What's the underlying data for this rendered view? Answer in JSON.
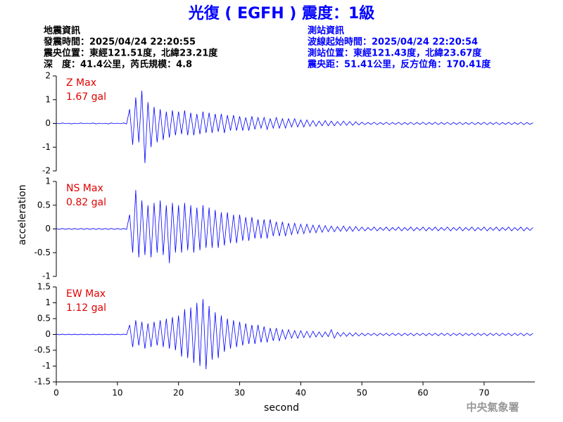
{
  "header": {
    "title": "光復 ( EGFH ) 震度：1級",
    "left": [
      "地震資訊",
      "發震時間：2025/04/24 22:20:55",
      "震央位置：東經121.51度，北緯23.21度",
      "深　度：41.4公里，芮氏規模：4.8"
    ],
    "right": [
      "測站資訊",
      "波線起始時間：2025/04/24 22:20:54",
      "測站位置：東經121.43度，北緯23.67度",
      "震央距：51.41公里，反方位角：170.41度"
    ],
    "watermark": "中央氣象署"
  },
  "chart_data": [
    {
      "type": "line",
      "annotations": [
        "Z Max",
        "1.67 gal"
      ],
      "color": "#0000ff",
      "x": [
        0,
        0.5,
        1,
        1.5,
        2,
        2.5,
        3,
        3.5,
        4,
        4.5,
        5,
        5.5,
        6,
        6.5,
        7,
        7.5,
        8,
        8.5,
        9,
        9.5,
        10,
        10.5,
        11,
        11.5,
        12,
        12.5,
        13,
        13.5,
        14,
        14.5,
        15,
        15.5,
        16,
        16.5,
        17,
        17.5,
        18,
        18.5,
        19,
        19.5,
        20,
        20.5,
        21,
        21.5,
        22,
        22.5,
        23,
        23.5,
        24,
        24.5,
        25,
        25.5,
        26,
        26.5,
        27,
        27.5,
        28,
        28.5,
        29,
        29.5,
        30,
        30.5,
        31,
        31.5,
        32,
        32.5,
        33,
        33.5,
        34,
        34.5,
        35,
        35.5,
        36,
        36.5,
        37,
        37.5,
        38,
        38.5,
        39,
        39.5,
        40,
        40.5,
        41,
        41.5,
        42,
        42.5,
        43,
        43.5,
        44,
        44.5,
        45,
        45.5,
        46,
        46.5,
        47,
        47.5,
        48,
        48.5,
        49,
        49.5,
        50,
        50.5,
        51,
        51.5,
        52,
        52.5,
        53,
        53.5,
        54,
        54.5,
        55,
        55.5,
        56,
        56.5,
        57,
        57.5,
        58,
        58.5,
        59,
        59.5,
        60,
        60.5,
        61,
        61.5,
        62,
        62.5,
        63,
        63.5,
        64,
        64.5,
        65,
        65.5,
        66,
        66.5,
        67,
        67.5,
        68,
        68.5,
        69,
        69.5,
        70,
        70.5,
        71,
        71.5,
        72,
        72.5,
        73,
        73.5,
        74,
        74.5,
        75,
        75.5,
        76,
        76.5,
        77,
        77.5,
        78
      ],
      "values": [
        0.01,
        -0.01,
        0.02,
        -0.01,
        0.01,
        -0.02,
        0.01,
        -0.01,
        0.02,
        -0.01,
        0.01,
        -0.01,
        0.02,
        -0.02,
        0.01,
        -0.01,
        0.01,
        -0.02,
        0.02,
        -0.01,
        0.01,
        -0.01,
        0.02,
        -0.02,
        0.6,
        -0.9,
        1.1,
        -0.8,
        1.38,
        -1.67,
        0.9,
        -1.0,
        0.7,
        -0.8,
        0.6,
        -0.7,
        0.5,
        -0.6,
        0.55,
        -0.5,
        0.5,
        -0.45,
        0.55,
        -0.5,
        0.45,
        -0.5,
        0.4,
        -0.45,
        0.5,
        -0.4,
        0.45,
        -0.4,
        0.4,
        -0.35,
        0.4,
        -0.4,
        0.35,
        -0.3,
        0.35,
        -0.3,
        0.3,
        -0.3,
        0.25,
        -0.3,
        0.3,
        -0.25,
        0.25,
        -0.2,
        0.25,
        -0.25,
        0.2,
        -0.2,
        0.25,
        -0.2,
        0.2,
        -0.2,
        0.2,
        -0.15,
        0.2,
        -0.15,
        0.15,
        -0.15,
        0.15,
        -0.12,
        0.12,
        -0.12,
        0.1,
        -0.1,
        0.12,
        -0.1,
        0.1,
        -0.1,
        0.08,
        -0.08,
        0.1,
        -0.08,
        0.08,
        -0.08,
        0.07,
        -0.06,
        0.05,
        -0.05,
        0.04,
        -0.04,
        0.05,
        -0.05,
        0.04,
        -0.04,
        0.05,
        -0.05,
        0.04,
        -0.04,
        0.05,
        -0.05,
        0.04,
        -0.04,
        0.05,
        -0.05,
        0.04,
        -0.04,
        0.05,
        -0.05,
        0.04,
        -0.04,
        0.05,
        -0.05,
        0.04,
        -0.04,
        0.05,
        -0.05,
        0.04,
        -0.04,
        0.05,
        -0.05,
        0.04,
        -0.04,
        0.05,
        -0.05,
        0.04,
        -0.04,
        0.05,
        -0.05,
        0.04,
        -0.04,
        0.05,
        -0.05,
        0.04,
        -0.04,
        0.05,
        -0.05,
        0.04,
        -0.04,
        0.05,
        -0.05,
        0.04,
        -0.04,
        0.03
      ],
      "xlim": [
        0,
        78.3
      ],
      "ylim": [
        -2,
        2
      ],
      "yticks": [
        -2,
        -1,
        0,
        1,
        2
      ]
    },
    {
      "type": "line",
      "annotations": [
        "NS Max",
        "0.82 gal"
      ],
      "color": "#0000ff",
      "ylabel": "acceleration",
      "x": [
        0,
        0.5,
        1,
        1.5,
        2,
        2.5,
        3,
        3.5,
        4,
        4.5,
        5,
        5.5,
        6,
        6.5,
        7,
        7.5,
        8,
        8.5,
        9,
        9.5,
        10,
        10.5,
        11,
        11.5,
        12,
        12.5,
        13,
        13.5,
        14,
        14.5,
        15,
        15.5,
        16,
        16.5,
        17,
        17.5,
        18,
        18.5,
        19,
        19.5,
        20,
        20.5,
        21,
        21.5,
        22,
        22.5,
        23,
        23.5,
        24,
        24.5,
        25,
        25.5,
        26,
        26.5,
        27,
        27.5,
        28,
        28.5,
        29,
        29.5,
        30,
        30.5,
        31,
        31.5,
        32,
        32.5,
        33,
        33.5,
        34,
        34.5,
        35,
        35.5,
        36,
        36.5,
        37,
        37.5,
        38,
        38.5,
        39,
        39.5,
        40,
        40.5,
        41,
        41.5,
        42,
        42.5,
        43,
        43.5,
        44,
        44.5,
        45,
        45.5,
        46,
        46.5,
        47,
        47.5,
        48,
        48.5,
        49,
        49.5,
        50,
        50.5,
        51,
        51.5,
        52,
        52.5,
        53,
        53.5,
        54,
        54.5,
        55,
        55.5,
        56,
        56.5,
        57,
        57.5,
        58,
        58.5,
        59,
        59.5,
        60,
        60.5,
        61,
        61.5,
        62,
        62.5,
        63,
        63.5,
        64,
        64.5,
        65,
        65.5,
        66,
        66.5,
        67,
        67.5,
        68,
        68.5,
        69,
        69.5,
        70,
        70.5,
        71,
        71.5,
        72,
        72.5,
        73,
        73.5,
        74,
        74.5,
        75,
        75.5,
        76,
        76.5,
        77,
        77.5,
        78
      ],
      "values": [
        0.01,
        -0.01,
        0.01,
        -0.01,
        0.01,
        -0.01,
        0.01,
        -0.01,
        0.01,
        -0.01,
        0.01,
        -0.01,
        0.01,
        -0.01,
        0.01,
        -0.01,
        0.01,
        -0.01,
        0.01,
        -0.01,
        0.01,
        -0.01,
        0.01,
        -0.01,
        0.3,
        -0.5,
        0.82,
        -0.6,
        0.6,
        -0.55,
        0.5,
        -0.6,
        0.55,
        -0.5,
        0.6,
        -0.55,
        0.5,
        -0.72,
        0.55,
        -0.5,
        0.5,
        -0.5,
        0.55,
        -0.45,
        0.5,
        -0.5,
        0.45,
        -0.45,
        0.5,
        -0.4,
        0.45,
        -0.4,
        0.4,
        -0.4,
        0.35,
        -0.35,
        0.35,
        -0.3,
        0.3,
        -0.3,
        0.3,
        -0.25,
        0.25,
        -0.25,
        0.25,
        -0.2,
        0.2,
        -0.2,
        0.2,
        -0.2,
        0.2,
        -0.15,
        0.15,
        -0.15,
        0.15,
        -0.15,
        0.12,
        -0.12,
        0.12,
        -0.1,
        0.1,
        -0.1,
        0.1,
        -0.08,
        0.08,
        -0.08,
        0.08,
        -0.07,
        0.07,
        -0.06,
        0.06,
        -0.06,
        0.05,
        -0.05,
        0.06,
        -0.05,
        0.05,
        -0.05,
        0.05,
        -0.04,
        0.04,
        -0.04,
        0.03,
        -0.03,
        0.04,
        -0.04,
        0.03,
        -0.03,
        0.04,
        -0.04,
        0.03,
        -0.03,
        0.04,
        -0.04,
        0.03,
        -0.03,
        0.04,
        -0.04,
        0.03,
        -0.03,
        0.04,
        -0.04,
        0.03,
        -0.03,
        0.04,
        -0.04,
        0.03,
        -0.03,
        0.04,
        -0.04,
        0.03,
        -0.03,
        0.04,
        -0.04,
        0.03,
        -0.03,
        0.04,
        -0.04,
        0.03,
        -0.03,
        0.04,
        -0.04,
        0.03,
        -0.03,
        0.04,
        -0.04,
        0.03,
        -0.03,
        0.04,
        -0.04,
        0.03,
        -0.03,
        0.04,
        -0.04,
        0.03,
        -0.03,
        0.03
      ],
      "xlim": [
        0,
        78.3
      ],
      "ylim": [
        -1,
        1
      ],
      "yticks": [
        -1,
        -0.5,
        0,
        0.5,
        1
      ]
    },
    {
      "type": "line",
      "annotations": [
        "EW Max",
        "1.12 gal"
      ],
      "color": "#0000ff",
      "xlabel": "second",
      "x": [
        0,
        0.5,
        1,
        1.5,
        2,
        2.5,
        3,
        3.5,
        4,
        4.5,
        5,
        5.5,
        6,
        6.5,
        7,
        7.5,
        8,
        8.5,
        9,
        9.5,
        10,
        10.5,
        11,
        11.5,
        12,
        12.5,
        13,
        13.5,
        14,
        14.5,
        15,
        15.5,
        16,
        16.5,
        17,
        17.5,
        18,
        18.5,
        19,
        19.5,
        20,
        20.5,
        21,
        21.5,
        22,
        22.5,
        23,
        23.5,
        24,
        24.5,
        25,
        25.5,
        26,
        26.5,
        27,
        27.5,
        28,
        28.5,
        29,
        29.5,
        30,
        30.5,
        31,
        31.5,
        32,
        32.5,
        33,
        33.5,
        34,
        34.5,
        35,
        35.5,
        36,
        36.5,
        37,
        37.5,
        38,
        38.5,
        39,
        39.5,
        40,
        40.5,
        41,
        41.5,
        42,
        42.5,
        43,
        43.5,
        44,
        44.5,
        45,
        45.5,
        46,
        46.5,
        47,
        47.5,
        48,
        48.5,
        49,
        49.5,
        50,
        50.5,
        51,
        51.5,
        52,
        52.5,
        53,
        53.5,
        54,
        54.5,
        55,
        55.5,
        56,
        56.5,
        57,
        57.5,
        58,
        58.5,
        59,
        59.5,
        60,
        60.5,
        61,
        61.5,
        62,
        62.5,
        63,
        63.5,
        64,
        64.5,
        65,
        65.5,
        66,
        66.5,
        67,
        67.5,
        68,
        68.5,
        69,
        69.5,
        70,
        70.5,
        71,
        71.5,
        72,
        72.5,
        73,
        73.5,
        74,
        74.5,
        75,
        75.5,
        76,
        76.5,
        77,
        77.5,
        78
      ],
      "values": [
        0.01,
        -0.01,
        0.01,
        -0.01,
        0.01,
        -0.01,
        0.01,
        -0.01,
        0.01,
        -0.01,
        0.01,
        -0.01,
        0.01,
        -0.01,
        0.01,
        -0.01,
        0.01,
        -0.01,
        0.01,
        -0.01,
        0.01,
        -0.01,
        0.01,
        -0.01,
        0.3,
        -0.4,
        0.45,
        -0.35,
        0.4,
        -0.45,
        0.35,
        -0.4,
        0.4,
        -0.35,
        0.45,
        -0.4,
        0.5,
        -0.45,
        0.55,
        -0.5,
        0.6,
        -0.7,
        0.8,
        -0.75,
        0.85,
        -0.9,
        1.0,
        -1.0,
        1.12,
        -1.1,
        0.9,
        -0.8,
        0.7,
        -0.75,
        0.6,
        -0.55,
        0.5,
        -0.45,
        0.45,
        -0.4,
        0.4,
        -0.35,
        0.35,
        -0.3,
        0.3,
        -0.3,
        0.3,
        -0.25,
        0.25,
        -0.25,
        0.2,
        -0.2,
        0.2,
        -0.2,
        0.15,
        -0.15,
        0.15,
        -0.12,
        0.12,
        -0.12,
        0.12,
        -0.1,
        0.1,
        -0.1,
        0.1,
        -0.08,
        0.08,
        -0.08,
        0.08,
        -0.07,
        0.15,
        -0.12,
        0.07,
        -0.06,
        0.06,
        -0.06,
        0.05,
        -0.05,
        0.05,
        -0.05,
        0.04,
        -0.04,
        0.04,
        -0.03,
        0.04,
        -0.04,
        0.04,
        -0.03,
        0.04,
        -0.04,
        0.04,
        -0.03,
        0.04,
        -0.04,
        0.04,
        -0.03,
        0.04,
        -0.04,
        0.04,
        -0.03,
        0.04,
        -0.04,
        0.04,
        -0.03,
        0.04,
        -0.04,
        0.04,
        -0.03,
        0.04,
        -0.04,
        0.04,
        -0.03,
        0.04,
        -0.04,
        0.04,
        -0.03,
        0.04,
        -0.04,
        0.04,
        -0.03,
        0.04,
        -0.04,
        0.04,
        -0.03,
        0.04,
        -0.04,
        0.04,
        -0.03,
        0.04,
        -0.04,
        0.04,
        -0.03,
        0.04,
        -0.04,
        0.04,
        -0.03,
        0.03
      ],
      "xlim": [
        0,
        78.3
      ],
      "ylim": [
        -1.5,
        1.5
      ],
      "yticks": [
        -1.5,
        -1,
        -0.5,
        0,
        0.5,
        1,
        1.5
      ],
      "xticks": [
        0,
        10,
        20,
        30,
        40,
        50,
        60,
        70
      ]
    }
  ]
}
